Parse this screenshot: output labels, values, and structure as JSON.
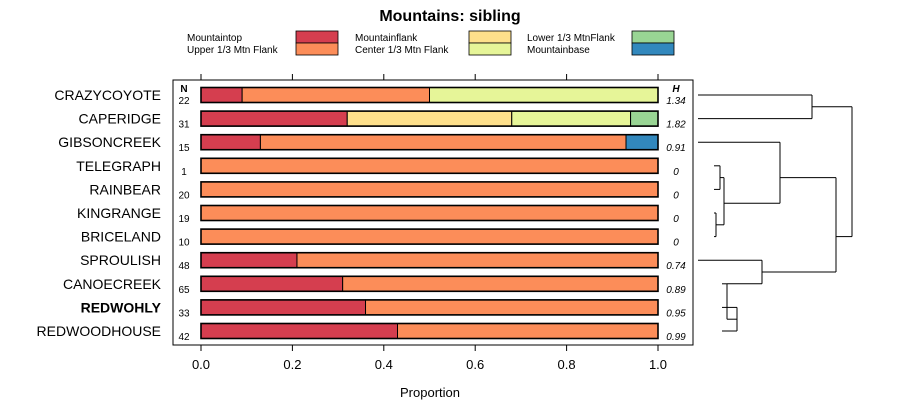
{
  "chart_data": {
    "type": "stacked-bar",
    "title": "Mountains: sibling",
    "xlabel": "Proportion",
    "xlim": [
      0,
      1
    ],
    "x_ticks": [
      "0.0",
      "0.2",
      "0.4",
      "0.6",
      "0.8",
      "1.0"
    ],
    "n_header": "N",
    "h_header": "H",
    "series": [
      {
        "name": "Mountaintop",
        "color": "#d53e4f"
      },
      {
        "name": "Upper 1/3 Mtn Flank",
        "color": "#fc8d59"
      },
      {
        "name": "Mountainflank",
        "color": "#fee08b"
      },
      {
        "name": "Center 1/3 Mtn Flank",
        "color": "#e6f598"
      },
      {
        "name": "Lower 1/3 MtnFlank",
        "color": "#99d594"
      },
      {
        "name": "Mountainbase",
        "color": "#3288bd"
      }
    ],
    "rows": [
      {
        "label": "CRAZYCOYOTE",
        "n": "22",
        "h": "1.34",
        "bold": false,
        "values": [
          0.09,
          0.41,
          0,
          0.5,
          0,
          0
        ]
      },
      {
        "label": "CAPERIDGE",
        "n": "31",
        "h": "1.82",
        "bold": false,
        "values": [
          0.32,
          0,
          0.36,
          0.26,
          0.06,
          0
        ]
      },
      {
        "label": "GIBSONCREEK",
        "n": "15",
        "h": "0.91",
        "bold": false,
        "values": [
          0.13,
          0.8,
          0,
          0,
          0,
          0.07
        ]
      },
      {
        "label": "TELEGRAPH",
        "n": "1",
        "h": "0",
        "bold": false,
        "values": [
          0,
          1,
          0,
          0,
          0,
          0
        ]
      },
      {
        "label": "RAINBEAR",
        "n": "20",
        "h": "0",
        "bold": false,
        "values": [
          0,
          1,
          0,
          0,
          0,
          0
        ]
      },
      {
        "label": "KINGRANGE",
        "n": "19",
        "h": "0",
        "bold": false,
        "values": [
          0,
          1,
          0,
          0,
          0,
          0
        ]
      },
      {
        "label": "BRICELAND",
        "n": "10",
        "h": "0",
        "bold": false,
        "values": [
          0,
          1,
          0,
          0,
          0,
          0
        ]
      },
      {
        "label": "SPROULISH",
        "n": "48",
        "h": "0.74",
        "bold": false,
        "values": [
          0.21,
          0.79,
          0,
          0,
          0,
          0
        ]
      },
      {
        "label": "CANOECREEK",
        "n": "65",
        "h": "0.89",
        "bold": false,
        "values": [
          0.31,
          0.69,
          0,
          0,
          0,
          0
        ]
      },
      {
        "label": "REDWOHLY",
        "n": "33",
        "h": "0.95",
        "bold": true,
        "values": [
          0.36,
          0.64,
          0,
          0,
          0,
          0
        ]
      },
      {
        "label": "REDWOODHOUSE",
        "n": "42",
        "h": "0.99",
        "bold": false,
        "values": [
          0.43,
          0.57,
          0,
          0,
          0,
          0
        ]
      }
    ]
  }
}
